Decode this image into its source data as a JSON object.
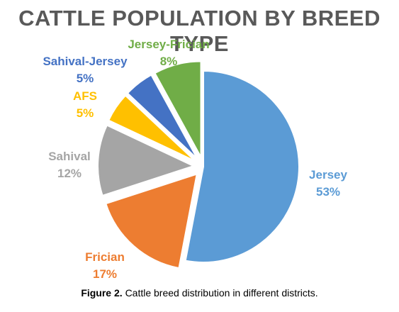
{
  "caption": {
    "label": "Figure 2.",
    "text": "Cattle breed distribution in different districts."
  },
  "chart_data": {
    "type": "pie",
    "title": "CATTLE POPULATION BY BREED TYPE",
    "slices": [
      {
        "name": "Jersey",
        "value": 53,
        "label": "53%",
        "color": "#5B9BD5",
        "exploded": false
      },
      {
        "name": "Frician",
        "value": 17,
        "label": "17%",
        "color": "#ED7D31",
        "exploded": true
      },
      {
        "name": "Sahival",
        "value": 12,
        "label": "12%",
        "color": "#A5A5A5",
        "exploded": true
      },
      {
        "name": "AFS",
        "value": 5,
        "label": "5%",
        "color": "#FFC000",
        "exploded": true
      },
      {
        "name": "Sahival-Jersey",
        "value": 5,
        "label": "5%",
        "color": "#4472C4",
        "exploded": true
      },
      {
        "name": "Jersey-Frician",
        "value": 8,
        "label": "8%",
        "color": "#70AD47",
        "exploded": true
      }
    ]
  }
}
